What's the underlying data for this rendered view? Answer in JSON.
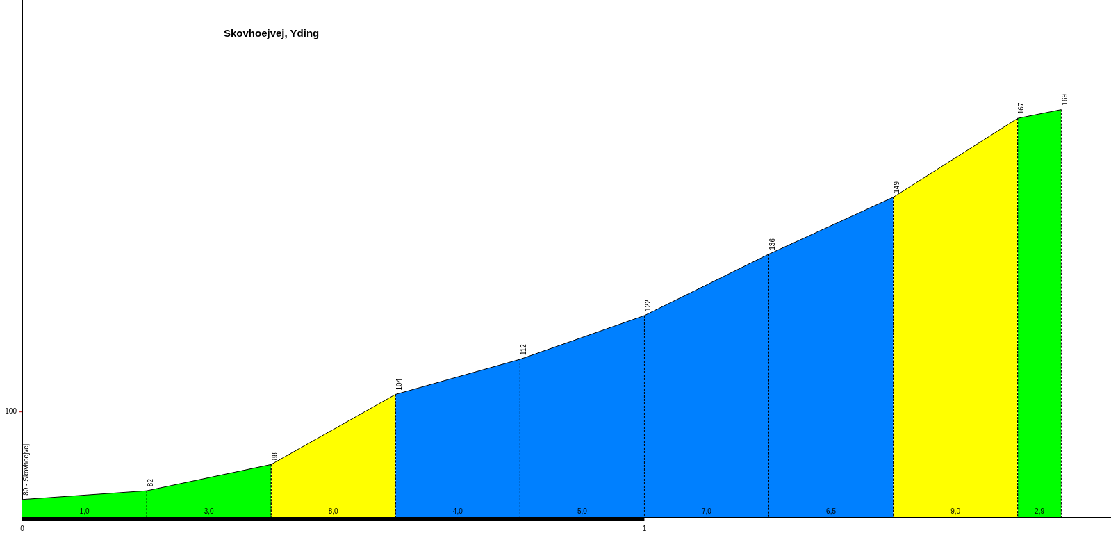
{
  "chart_data": {
    "type": "area",
    "title": "Skovhoejvej, Yding",
    "xlim": [
      0,
      1.75
    ],
    "xticks": [
      0,
      1
    ],
    "ylim": [
      76,
      194
    ],
    "grid": false,
    "legend": false,
    "marker": "none",
    "series": [
      {
        "color": "#00ff00",
        "x": [
          0,
          0.2,
          0.4
        ],
        "values": [
          80,
          82,
          88
        ],
        "value_labels": [
          "80 - Skovhoejvej",
          "82",
          "88"
        ]
      },
      {
        "color": "#ffff00",
        "x": [
          0.4,
          0.6
        ],
        "values": [
          88,
          104
        ],
        "value_labels": [
          null,
          "104"
        ]
      },
      {
        "color": "#0080ff",
        "x": [
          0.6,
          0.8,
          1.0,
          1.2,
          1.4
        ],
        "values": [
          104,
          112,
          122,
          136,
          149
        ],
        "value_labels": [
          null,
          "112",
          "122",
          "136",
          "149"
        ]
      },
      {
        "color": "#ffff00",
        "x": [
          1.4,
          1.6
        ],
        "values": [
          149,
          167
        ],
        "value_labels": [
          null,
          "167"
        ]
      },
      {
        "color": "#00ff00",
        "x": [
          1.6,
          1.67
        ],
        "values": [
          167,
          169
        ],
        "value_labels": [
          null,
          "169"
        ]
      }
    ],
    "annotations": [
      "1,0",
      "3,0",
      "8,0",
      "4,0",
      "5,0",
      "7,0",
      "6,5",
      "9,0",
      "2,9",
      "100"
    ]
  }
}
